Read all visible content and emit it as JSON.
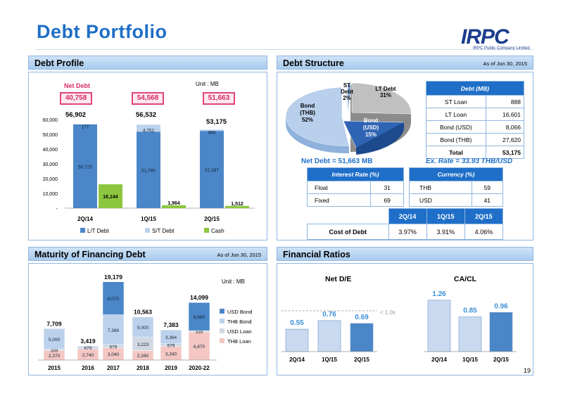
{
  "page": {
    "title": "Debt Portfolio",
    "logo_text": "IRPC",
    "logo_sub": "IRPC Public Company Limited",
    "page_number": "19"
  },
  "debt_profile": {
    "header": "Debt Profile",
    "unit": "Unit : MB",
    "net_debt_label": "Net Debt",
    "net_debt_values": [
      "40,758",
      "54,568",
      "51,663"
    ],
    "totals": [
      "56,902",
      "56,532",
      "53,175"
    ]
  },
  "debt_structure": {
    "header": "Debt Structure",
    "as_of": "As of  Jun 30, 2015",
    "pie_labels": {
      "st_debt": "ST Debt",
      "st_debt_pct": "2%",
      "lt_debt": "LT Debt",
      "lt_debt_pct": "31%",
      "bond_thb": "Bond",
      "bond_thb_2": "(THB)",
      "bond_thb_pct": "52%",
      "bond_usd": "Bond",
      "bond_usd_2": "(USD)",
      "bond_usd_pct": "15%"
    },
    "debt_table": {
      "title": "Debt (MB)",
      "rows": [
        {
          "label": "ST Loan",
          "value": "888"
        },
        {
          "label": "LT Loan",
          "value": "16,601"
        },
        {
          "label": "Bond (USD)",
          "value": "8,066"
        },
        {
          "label": "Bond (THB)",
          "value": "27,620"
        },
        {
          "label": "Total",
          "value": "53,175"
        }
      ]
    },
    "net_debt": "Net Debt =  51,663 MB",
    "ex_rate": "Ex. Rate = 33.93 THB/USD",
    "interest_rate": {
      "title": "Interest Rate (%)",
      "rows": [
        {
          "label": "Float",
          "value": "31"
        },
        {
          "label": "Fixed",
          "value": "69"
        }
      ]
    },
    "currency": {
      "title": "Currency (%)",
      "rows": [
        {
          "label": "THB",
          "value": "59"
        },
        {
          "label": "USD",
          "value": "41"
        }
      ]
    },
    "cost_of_debt": {
      "headers": [
        "2Q/14",
        "1Q/15",
        "2Q/15"
      ],
      "label": "Cost of Debt",
      "values": [
        "3.97%",
        "3.91%",
        "4.06%"
      ]
    }
  },
  "maturity": {
    "header": "Maturity of Financing Debt",
    "as_of": "As of  Jun 30, 2015",
    "unit": "Unit : MB"
  },
  "financial_ratios": {
    "header": "Financial Ratios",
    "de_title": "Net D/E",
    "cacl_title": "CA/CL",
    "threshold_label": "< 1.0x"
  },
  "chart_data": [
    {
      "type": "bar",
      "name": "debt-profile",
      "categories": [
        "2Q/14",
        "1Q/15",
        "2Q/15"
      ],
      "series": [
        {
          "name": "L/T Debt",
          "values": [
            56725,
            51780,
            52287
          ],
          "color": "#4a86c8",
          "labels": [
            "56,725",
            "51,780",
            "52,287"
          ]
        },
        {
          "name": "S/T Debt",
          "values": [
            177,
            4752,
            888
          ],
          "color": "#bcd2ec",
          "labels": [
            "177",
            "4,752",
            "888"
          ]
        },
        {
          "name": "Cash",
          "values": [
            16144,
            1964,
            1512
          ],
          "color": "#8cc63f",
          "labels": [
            "16,144",
            "1,964",
            "1,512"
          ]
        }
      ],
      "yticks": [
        "-",
        "10,000",
        "20,000",
        "30,000",
        "40,000",
        "50,000",
        "60,000"
      ],
      "ylim": [
        0,
        60000
      ]
    },
    {
      "type": "bar",
      "name": "maturity",
      "categories": [
        "2015",
        "2016",
        "2017",
        "2018",
        "2019",
        "2020-22"
      ],
      "totals": [
        "7,709",
        "3,419",
        "19,179",
        "10,563",
        "7,383",
        "14,099"
      ],
      "total_values": [
        7709,
        3419,
        19179,
        10563,
        7383,
        14099
      ],
      "series": [
        {
          "name": "THB Loan",
          "color": "#f4c7c3",
          "values": [
            2370,
            2740,
            3040,
            2340,
            3340,
            6870
          ],
          "labels": [
            "2,370",
            "2,740",
            "3,040",
            "2,340",
            "3,340",
            "6,870"
          ]
        },
        {
          "name": "USD Loan",
          "color": "#d0d8e4",
          "values": [
            339,
            679,
            679,
            3223,
            679,
            339
          ],
          "labels": [
            "339",
            "679",
            "679",
            "3,223",
            "679",
            "339"
          ]
        },
        {
          "name": "THB Bond",
          "color": "#bcd2ec",
          "values": [
            5000,
            0,
            7386,
            5000,
            3364,
            0
          ],
          "labels": [
            "5,000",
            "",
            "7,386",
            "5,000",
            "3,364",
            ""
          ]
        },
        {
          "name": "USD Bond",
          "color": "#4a86c8",
          "values": [
            0,
            0,
            8075,
            0,
            0,
            6890
          ],
          "labels": [
            "",
            "",
            "8,075",
            "",
            "",
            "6,890"
          ]
        }
      ],
      "legend_order": [
        "USD Bond",
        "THB Bond",
        "USD Loan",
        "THB Loan"
      ],
      "ylim": [
        0,
        20000
      ]
    },
    {
      "type": "bar",
      "name": "net-de",
      "title": "Net D/E",
      "categories": [
        "2Q/14",
        "1Q/15",
        "2Q/15"
      ],
      "values": [
        0.55,
        0.76,
        0.69
      ],
      "labels": [
        "0.55",
        "0.76",
        "0.69"
      ],
      "colors": [
        "#c9daf0",
        "#c9daf0",
        "#4a86c8"
      ],
      "threshold": 1.0,
      "ylim": [
        0,
        1.3
      ]
    },
    {
      "type": "bar",
      "name": "ca-cl",
      "title": "CA/CL",
      "categories": [
        "2Q/14",
        "1Q/15",
        "2Q/15"
      ],
      "values": [
        1.26,
        0.85,
        0.96
      ],
      "labels": [
        "1.26",
        "0.85",
        "0.96"
      ],
      "colors": [
        "#c9daf0",
        "#c9daf0",
        "#4a86c8"
      ],
      "ylim": [
        0,
        1.5
      ]
    },
    {
      "type": "pie",
      "name": "debt-structure",
      "labels": [
        "ST Debt",
        "LT Debt",
        "Bond (USD)",
        "Bond (THB)"
      ],
      "values": [
        2,
        31,
        15,
        52
      ]
    }
  ]
}
